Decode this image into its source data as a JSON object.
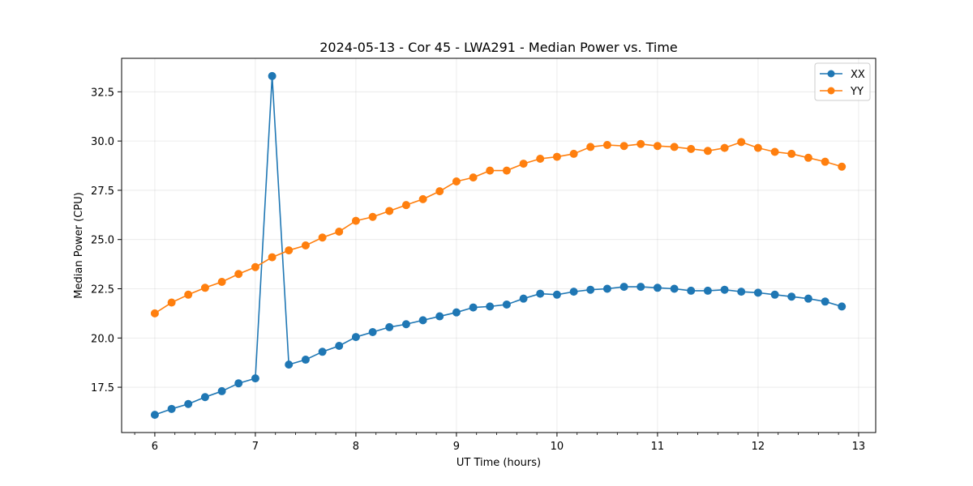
{
  "chart_data": {
    "type": "line",
    "title": "2024-05-13 - Cor 45 - LWA291 - Median Power vs. Time",
    "xlabel": "UT Time (hours)",
    "ylabel": "Median Power (CPU)",
    "xlim": [
      5.67,
      13.17
    ],
    "ylim": [
      15.2,
      34.2
    ],
    "xticks": [
      6,
      7,
      8,
      9,
      10,
      11,
      12,
      13
    ],
    "xtick_labels": [
      "6",
      "7",
      "8",
      "9",
      "10",
      "11",
      "12",
      "13"
    ],
    "yticks": [
      17.5,
      20.0,
      22.5,
      25.0,
      27.5,
      30.0,
      32.5
    ],
    "ytick_labels": [
      "17.5",
      "20.0",
      "22.5",
      "25.0",
      "27.5",
      "30.0",
      "32.5"
    ],
    "grid": true,
    "legend_position": "top-right",
    "x": [
      6.0,
      6.167,
      6.333,
      6.5,
      6.667,
      6.833,
      7.0,
      7.167,
      7.333,
      7.5,
      7.667,
      7.833,
      8.0,
      8.167,
      8.333,
      8.5,
      8.667,
      8.833,
      9.0,
      9.167,
      9.333,
      9.5,
      9.667,
      9.833,
      10.0,
      10.167,
      10.333,
      10.5,
      10.667,
      10.833,
      11.0,
      11.167,
      11.333,
      11.5,
      11.667,
      11.833,
      12.0,
      12.167,
      12.333,
      12.5,
      12.667,
      12.833
    ],
    "series": [
      {
        "name": "XX",
        "color": "#1f77b4",
        "values": [
          16.1,
          16.4,
          16.65,
          17.0,
          17.3,
          17.7,
          17.95,
          33.3,
          18.65,
          18.9,
          19.3,
          19.6,
          20.05,
          20.3,
          20.55,
          20.7,
          20.9,
          21.1,
          21.3,
          21.55,
          21.6,
          21.7,
          22.0,
          22.25,
          22.2,
          22.35,
          22.45,
          22.5,
          22.6,
          22.6,
          22.55,
          22.5,
          22.4,
          22.4,
          22.45,
          22.35,
          22.3,
          22.2,
          22.1,
          22.0,
          21.85,
          21.6
        ]
      },
      {
        "name": "YY",
        "color": "#ff7f0e",
        "values": [
          21.25,
          21.8,
          22.2,
          22.55,
          22.85,
          23.25,
          23.6,
          24.1,
          24.45,
          24.7,
          25.1,
          25.4,
          25.95,
          26.15,
          26.45,
          26.75,
          27.05,
          27.45,
          27.95,
          28.15,
          28.5,
          28.5,
          28.85,
          29.1,
          29.2,
          29.35,
          29.7,
          29.8,
          29.75,
          29.85,
          29.75,
          29.7,
          29.6,
          29.5,
          29.65,
          29.95,
          29.65,
          29.45,
          29.35,
          29.15,
          28.95,
          28.7
        ]
      }
    ]
  }
}
